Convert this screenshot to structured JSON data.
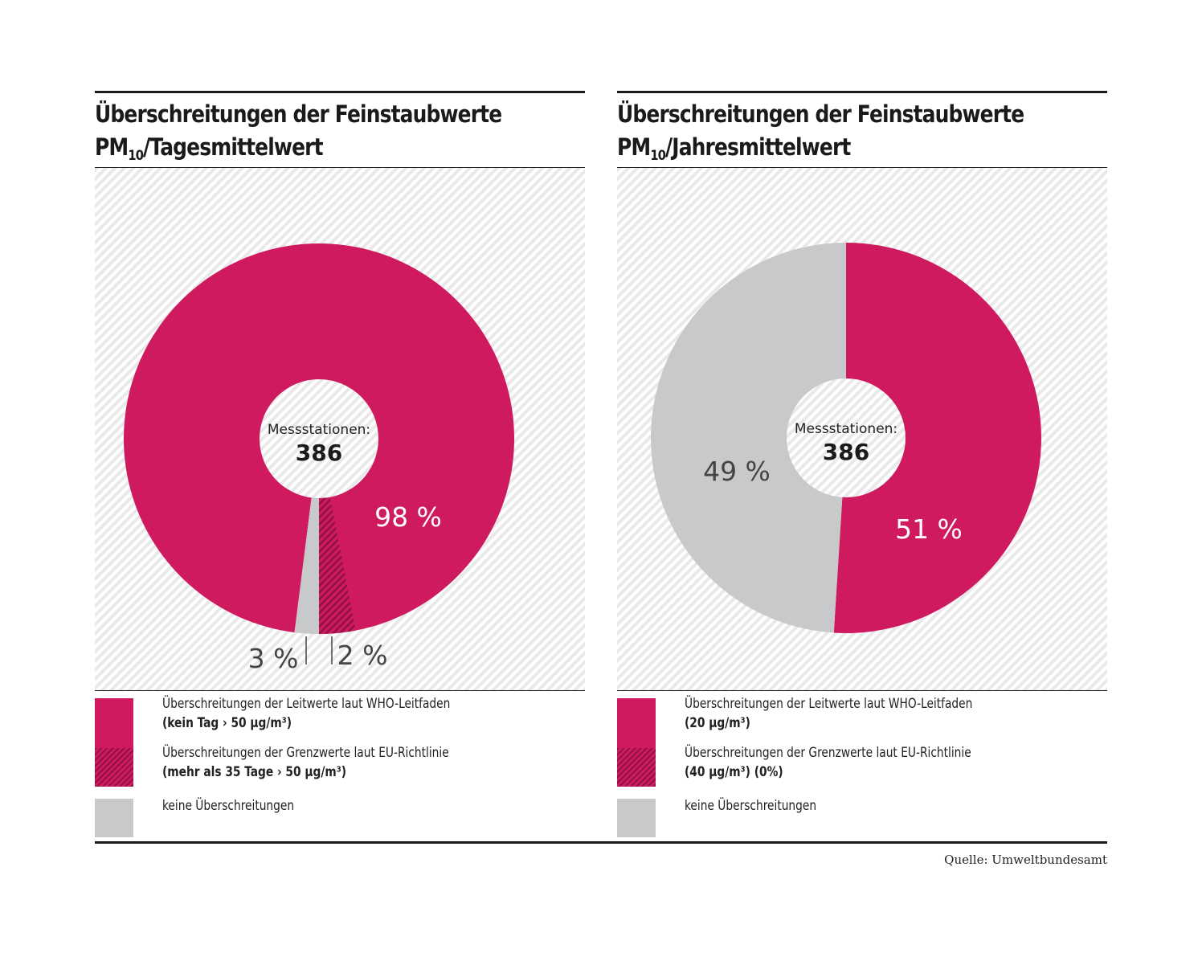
{
  "colors": {
    "who_exceed": "#cf1a5f",
    "eu_exceed_hatch": "#8f1242",
    "none": "#c8c9cb",
    "hatch_bg": "#e9e9e9",
    "text_dark": "#444444",
    "text_light": "#ffffff"
  },
  "panels": [
    {
      "title_line1": "Überschreitungen der Feinstaubwerte",
      "title_pm": "PM",
      "title_sub": "10",
      "title_rest": "/Tagesmittelwert",
      "center_label": "Messstationen:",
      "center_value": "386",
      "legend": [
        {
          "label": "Überschreitungen der Leitwerte laut WHO-Leitfaden",
          "detail": "(kein Tag › 50 µg/m³)"
        },
        {
          "label": "Überschreitungen der Grenzwerte laut EU-Richtlinie",
          "detail": "(mehr als 35 Tage › 50 µg/m³)"
        },
        {
          "label": "keine Überschreitungen",
          "detail": ""
        }
      ]
    },
    {
      "title_line1": "Überschreitungen der Feinstaubwerte",
      "title_pm": "PM",
      "title_sub": "10",
      "title_rest": "/Jahresmittelwert",
      "center_label": "Messstationen:",
      "center_value": "386",
      "legend": [
        {
          "label": "Überschreitungen der Leitwerte laut WHO-Leitfaden",
          "detail": "(20 µg/m³)"
        },
        {
          "label": "Überschreitungen der Grenzwerte laut EU-Richtlinie",
          "detail": "(40 µg/m³) (0%)"
        },
        {
          "label": "keine Überschreitungen",
          "detail": ""
        }
      ]
    }
  ],
  "source": "Quelle: Umweltbundesamt",
  "chart_data": [
    {
      "type": "pie",
      "title": "Überschreitungen der Feinstaubwerte PM10/Tagesmittelwert",
      "center_text": "Messstationen: 386",
      "slices": [
        {
          "name": "Überschreitungen der Leitwerte laut WHO-Leitfaden (kein Tag > 50 µg/m³)",
          "value": 98,
          "label": "98 %",
          "color": "#cf1a5f"
        },
        {
          "name": "keine Überschreitungen",
          "value": 2,
          "label": "2 %",
          "color": "#c8c9cb"
        }
      ],
      "sub_slices": [
        {
          "name": "Überschreitungen der Grenzwerte laut EU-Richtlinie (mehr als 35 Tage > 50 µg/m³)",
          "value": 3,
          "label": "3 %",
          "pattern": "hatched",
          "within": "Überschreitungen der Leitwerte laut WHO-Leitfaden (kein Tag > 50 µg/m³)"
        }
      ],
      "donut": true
    },
    {
      "type": "pie",
      "title": "Überschreitungen der Feinstaubwerte PM10/Jahresmittelwert",
      "center_text": "Messstationen: 386",
      "slices": [
        {
          "name": "Überschreitungen der Leitwerte laut WHO-Leitfaden (20 µg/m³)",
          "value": 51,
          "label": "51 %",
          "color": "#cf1a5f"
        },
        {
          "name": "keine Überschreitungen",
          "value": 49,
          "label": "49 %",
          "color": "#c8c9cb"
        }
      ],
      "sub_slices": [
        {
          "name": "Überschreitungen der Grenzwerte laut EU-Richtlinie (40 µg/m³)",
          "value": 0,
          "label": "0%",
          "pattern": "hatched"
        }
      ],
      "donut": true
    }
  ]
}
